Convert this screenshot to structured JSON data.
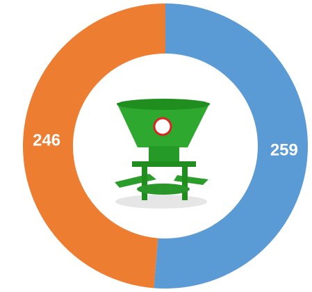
{
  "chart_data": {
    "type": "donut",
    "categories": [
      null,
      null
    ],
    "values": [
      259,
      246
    ],
    "colors": [
      "#5b9bd5",
      "#ed7d31"
    ]
  }
}
